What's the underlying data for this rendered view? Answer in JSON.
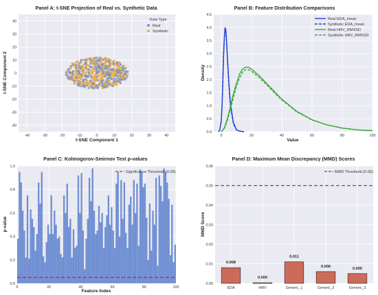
{
  "chart_data": [
    {
      "panel": "A",
      "type": "scatter",
      "title": "Panel A: t-SNE Projection of Real vs. Synthetic Data",
      "xlabel": "t-SNE Component 1",
      "ylabel": "t-SNE Component 2",
      "xlim": [
        -45,
        45
      ],
      "ylim": [
        -45,
        45
      ],
      "xticks": [
        -40,
        -30,
        -20,
        -10,
        0,
        10,
        20,
        30,
        40
      ],
      "yticks": [
        -40,
        -30,
        -20,
        -10,
        0,
        10,
        20,
        30,
        40
      ],
      "legend_title": "Data Type",
      "legend_position": "top-right",
      "grid": true,
      "cluster": {
        "center": [
          0,
          0
        ],
        "radius_x": 18,
        "radius_y": 12
      },
      "series": [
        {
          "name": "Real",
          "color": "#7b93c9",
          "count": 450
        },
        {
          "name": "Synthetic",
          "color": "#f5b041",
          "count": 450
        }
      ]
    },
    {
      "panel": "B",
      "type": "line",
      "title": "Panel B: Feature Distribution Comparisons",
      "xlabel": "Value",
      "ylabel": "Density",
      "xlim": [
        -5,
        100
      ],
      "ylim": [
        0,
        4.5
      ],
      "xticks": [
        0,
        20,
        40,
        60,
        80,
        100
      ],
      "yticks": [
        0.0,
        0.5,
        1.0,
        1.5,
        2.0,
        2.5,
        3.0,
        3.5,
        4.0,
        4.5
      ],
      "legend_position": "top-right",
      "grid": true,
      "series": [
        {
          "name": "Real EDA_mean",
          "color": "#1f3fd1",
          "dash": "solid",
          "x": [
            -2,
            -1,
            0,
            0.5,
            1,
            1.5,
            2,
            2.5,
            3,
            3.5,
            4,
            5,
            6,
            8,
            10,
            12,
            15
          ],
          "y": [
            0,
            0.05,
            0.4,
            1.0,
            1.9,
            2.9,
            3.6,
            4.0,
            3.9,
            3.5,
            2.9,
            1.9,
            1.1,
            0.35,
            0.08,
            0.02,
            0
          ]
        },
        {
          "name": "Synthetic EDA_mean",
          "color": "#1f3fd1",
          "dash": "dashed",
          "x": [
            -2,
            -1,
            0,
            0.5,
            1,
            1.5,
            2,
            2.5,
            3,
            3.5,
            4,
            5,
            6,
            8,
            10,
            12,
            15
          ],
          "y": [
            0,
            0.06,
            0.45,
            1.1,
            2.0,
            3.0,
            3.6,
            3.9,
            3.8,
            3.4,
            2.8,
            1.8,
            1.0,
            0.3,
            0.07,
            0.02,
            0
          ]
        },
        {
          "name": "Real HRV_RMSSD",
          "color": "#3aa83a",
          "dash": "solid",
          "x": [
            0,
            2,
            4,
            6,
            8,
            10,
            12,
            14,
            16,
            18,
            20,
            25,
            30,
            35,
            40,
            50,
            60,
            70,
            80,
            90,
            100
          ],
          "y": [
            0,
            0.15,
            0.5,
            0.95,
            1.45,
            1.85,
            2.2,
            2.4,
            2.48,
            2.47,
            2.4,
            2.15,
            1.85,
            1.55,
            1.25,
            0.78,
            0.46,
            0.26,
            0.14,
            0.07,
            0.04
          ]
        },
        {
          "name": "Synthetic HRV_RMSSD",
          "color": "#3aa83a",
          "dash": "dashed",
          "x": [
            0,
            2,
            4,
            6,
            8,
            10,
            12,
            14,
            16,
            18,
            20,
            25,
            30,
            35,
            40,
            50,
            60,
            70,
            80,
            90,
            100
          ],
          "y": [
            0,
            0.12,
            0.42,
            0.85,
            1.32,
            1.72,
            2.05,
            2.28,
            2.38,
            2.38,
            2.32,
            2.08,
            1.8,
            1.5,
            1.22,
            0.76,
            0.45,
            0.26,
            0.14,
            0.07,
            0.04
          ]
        }
      ]
    },
    {
      "panel": "C",
      "type": "bar",
      "title": "Panel C: Kolmogorov-Smirnov Test p-values",
      "xlabel": "Feature Index",
      "ylabel": "p-value",
      "xlim": [
        0,
        100
      ],
      "ylim": [
        0,
        1.0
      ],
      "xticks": [
        0,
        20,
        40,
        60,
        80,
        100
      ],
      "yticks": [
        0.0,
        0.2,
        0.4,
        0.6,
        0.8,
        1.0
      ],
      "bar_color": "#6f8fd3",
      "legend_position": "top-right",
      "grid": true,
      "reference_line": {
        "label": "Significance Threshold (0.05)",
        "value": 0.05,
        "color": "#e01e1e"
      },
      "values": [
        0.38,
        0.95,
        0.86,
        0.62,
        0.45,
        0.22,
        0.75,
        0.21,
        0.63,
        0.55,
        0.48,
        0.28,
        0.42,
        0.86,
        0.68,
        0.95,
        0.23,
        0.18,
        0.35,
        0.5,
        0.42,
        0.75,
        0.42,
        0.62,
        0.5,
        0.38,
        0.4,
        0.25,
        0.22,
        0.75,
        0.6,
        0.85,
        0.48,
        0.55,
        0.22,
        0.46,
        0.3,
        0.32,
        0.92,
        0.6,
        0.94,
        0.45,
        0.12,
        0.38,
        0.55,
        0.9,
        0.7,
        0.98,
        0.62,
        0.42,
        0.45,
        0.66,
        0.52,
        0.6,
        0.3,
        0.48,
        0.58,
        0.75,
        0.5,
        0.65,
        0.45,
        0.3,
        0.85,
        0.95,
        0.4,
        0.88,
        0.55,
        0.86,
        0.43,
        0.3,
        0.67,
        0.74,
        0.5,
        0.88,
        0.6,
        0.85,
        0.32,
        0.97,
        0.95,
        0.82,
        0.85,
        0.56,
        0.2,
        0.68,
        0.28,
        0.62,
        0.5,
        0.9,
        0.15,
        0.92,
        0.83,
        0.7,
        0.98,
        0.95,
        0.86,
        0.72,
        0.24,
        0.67,
        0.18,
        0.33
      ]
    },
    {
      "panel": "D",
      "type": "bar",
      "title": "Panel D: Maximum Mean Discrepancy (MMD) Scores",
      "ylabel": "MMD Score",
      "xlabel": "",
      "ylim": [
        0,
        0.06
      ],
      "yticks": [
        0.0,
        0.01,
        0.02,
        0.03,
        0.04,
        0.05,
        0.06
      ],
      "categories": [
        "EDA",
        "HRV",
        "Generic_1",
        "Generic_2",
        "Generic_3"
      ],
      "values": [
        0.008,
        0.0003,
        0.011,
        0.006,
        0.005
      ],
      "data_labels": [
        "0.008",
        "0.000",
        "0.011",
        "0.006",
        "0.005"
      ],
      "bar_color": "#cd6b5a",
      "bar_edge_color": "#333333",
      "legend_position": "top-right",
      "grid": true,
      "reference_line": {
        "label": "MMD Threshold (0.05)",
        "value": 0.05,
        "color": "#e01e1e"
      }
    }
  ]
}
